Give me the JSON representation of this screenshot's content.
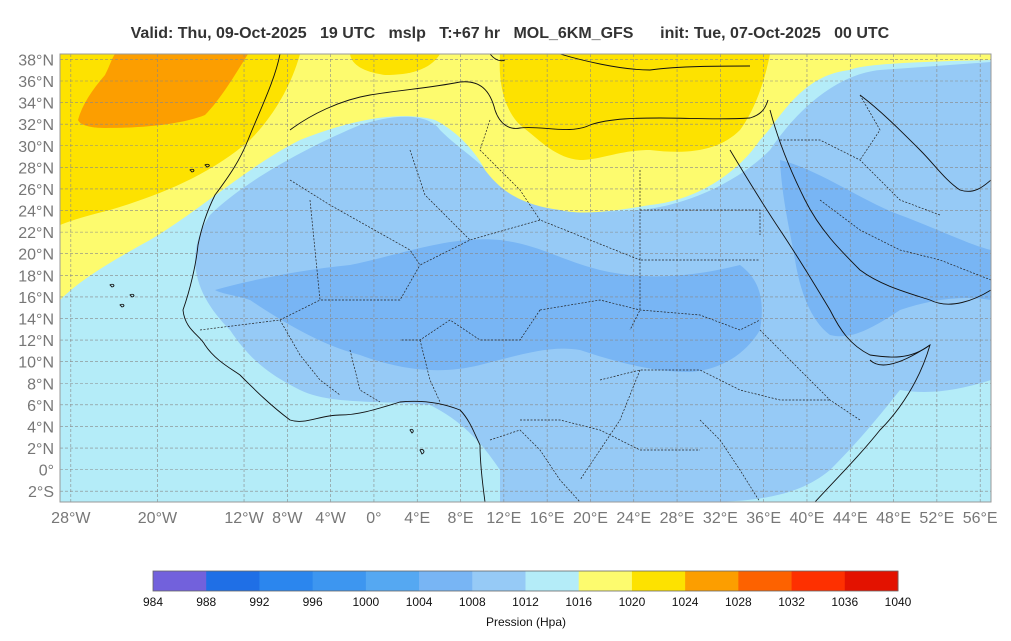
{
  "title": {
    "valid": "Valid: Thu, 09-Oct-2025   19 UTC",
    "field": "mslp",
    "lead": "T:+67 hr",
    "model": "MOL_6KM_GFS",
    "init": "init: Tue, 07-Oct-2025   00 UTC"
  },
  "map": {
    "lat_labels": [
      "38°N",
      "36°N",
      "34°N",
      "32°N",
      "30°N",
      "28°N",
      "26°N",
      "24°N",
      "22°N",
      "20°N",
      "18°N",
      "16°N",
      "14°N",
      "12°N",
      "10°N",
      "8°N",
      "6°N",
      "4°N",
      "2°N",
      "0°",
      "2°S"
    ],
    "lon_labels": [
      "28°W",
      "20°W",
      "12°W",
      "8°W",
      "4°W",
      "0°",
      "4°E",
      "8°E",
      "12°E",
      "16°E",
      "20°E",
      "24°E",
      "28°E",
      "32°E",
      "36°E",
      "40°E",
      "44°E",
      "48°E",
      "52°E",
      "56°E"
    ],
    "lat_values": [
      38,
      36,
      34,
      32,
      30,
      28,
      26,
      24,
      22,
      20,
      18,
      16,
      14,
      12,
      10,
      8,
      6,
      4,
      2,
      0,
      -2
    ],
    "lon_values": [
      -28,
      -20,
      -12,
      -8,
      -4,
      0,
      4,
      8,
      12,
      16,
      20,
      24,
      28,
      32,
      36,
      40,
      44,
      48,
      52,
      56
    ],
    "extent": {
      "lon_min": -29,
      "lon_max": 57,
      "lat_min": -3,
      "lat_max": 38.5
    },
    "grid": true
  },
  "colorbar": {
    "levels": [
      "984",
      "988",
      "992",
      "996",
      "1000",
      "1004",
      "1008",
      "1012",
      "1016",
      "1020",
      "1024",
      "1028",
      "1032",
      "1036",
      "1040"
    ],
    "colors": [
      "#7261dc",
      "#1f6fe6",
      "#2b86ee",
      "#3d96f0",
      "#55a8f2",
      "#78b5f4",
      "#96caf6",
      "#b4ecf8",
      "#fdfb6e",
      "#fde200",
      "#fc9e00",
      "#fd6200",
      "#fe3000",
      "#e31200"
    ],
    "title": "Pression (Hpa)"
  }
}
